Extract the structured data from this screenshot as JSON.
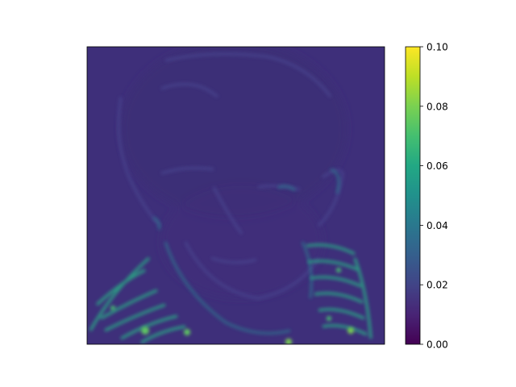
{
  "chart_data": {
    "type": "heatmap",
    "title": "",
    "xlabel": "",
    "ylabel": "",
    "colormap": "viridis",
    "axes_ticks_visible": false,
    "grid": false,
    "value_range": [
      0.0,
      0.1
    ],
    "typical_background_value": 0.02,
    "max_observed_value": 0.07,
    "colorbar": {
      "orientation": "vertical",
      "placement": "right",
      "ticks": [
        0.0,
        0.02,
        0.04,
        0.06,
        0.08,
        0.1
      ],
      "tick_labels": [
        "0.00",
        "0.02",
        "0.04",
        "0.06",
        "0.08",
        "0.10"
      ]
    }
  }
}
